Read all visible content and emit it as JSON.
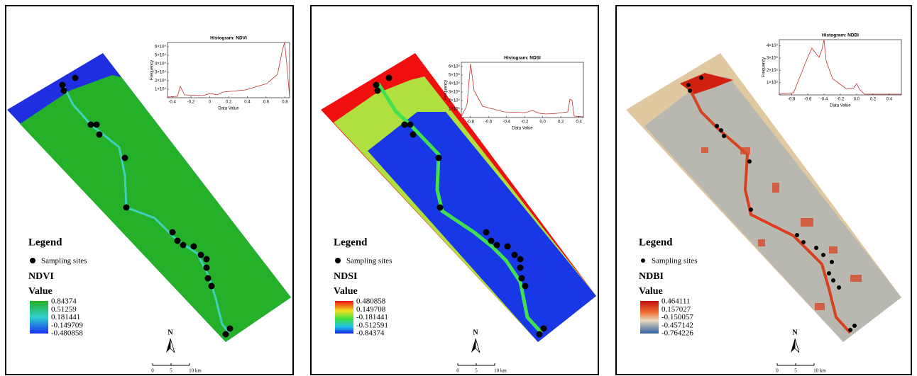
{
  "panels": [
    {
      "histogram": {
        "title": "Histogram: NDVI",
        "x_label": "Data Value",
        "y_label": "Frequency",
        "xlim": [
          -0.45,
          0.85
        ],
        "xticks": [
          -0.4,
          -0.2,
          0,
          0.2,
          0.4,
          0.6,
          0.8
        ],
        "ylim": [
          0,
          650000
        ],
        "yticks": [
          {
            "value": 100000,
            "label": "1×10⁵"
          },
          {
            "value": 200000,
            "label": "2×10⁵"
          },
          {
            "value": 300000,
            "label": "3×10⁵"
          },
          {
            "value": 400000,
            "label": "4×10⁵"
          },
          {
            "value": 500000,
            "label": "5×10⁵"
          },
          {
            "value": 600000,
            "label": "6×10⁵"
          }
        ]
      },
      "legend": {
        "title": "Legend",
        "site_label": "Sampling sites",
        "index": "NDVI",
        "value_title": "Value",
        "colorbar": [
          "0.84374",
          "0.51259",
          "0.181441",
          "-0.149709",
          "-0.480858"
        ]
      },
      "north": "N",
      "scale": [
        "0",
        "5",
        "10 km"
      ]
    },
    {
      "histogram": {
        "title": "Histogram: NDSI",
        "x_label": "Data Value",
        "y_label": "Frequency",
        "xlim": [
          -0.9,
          0.45
        ],
        "xticks": [
          -0.8,
          -0.6,
          -0.4,
          -0.2,
          {
            "value": 0,
            "label": "0.0"
          },
          0.2,
          0.4
        ],
        "ylim": [
          0,
          650000
        ],
        "yticks": [
          {
            "value": 100000,
            "label": "1×10⁵"
          },
          {
            "value": 200000,
            "label": "2×10⁵"
          },
          {
            "value": 300000,
            "label": "3×10⁵"
          },
          {
            "value": 400000,
            "label": "4×10⁵"
          },
          {
            "value": 500000,
            "label": "5×10⁵"
          },
          {
            "value": 600000,
            "label": "6×10⁵"
          }
        ]
      },
      "legend": {
        "title": "Legend",
        "site_label": "Sampling sites",
        "index": "NDSI",
        "value_title": "Value",
        "colorbar": [
          "0.480858",
          "0.149708",
          "-0.181441",
          "-0.512591",
          "-0.84374"
        ]
      },
      "north": "N",
      "scale": [
        "0",
        "5",
        "10 km"
      ]
    },
    {
      "histogram": {
        "title": "Histogram: NDBI",
        "x_label": "Data Value",
        "y_label": "Frequency",
        "xlim": [
          -0.95,
          0.55
        ],
        "xticks": [
          -0.8,
          -0.6,
          -0.4,
          -0.2,
          {
            "value": 0,
            "label": "0.0"
          },
          0.2,
          0.4
        ],
        "ylim": [
          0,
          450000
        ],
        "yticks": [
          {
            "value": 100000,
            "label": "1×10⁵"
          },
          {
            "value": 200000,
            "label": "2×10⁵"
          },
          {
            "value": 300000,
            "label": "3×10⁵"
          },
          {
            "value": 400000,
            "label": "4×10⁵"
          }
        ]
      },
      "legend": {
        "title": "Legend",
        "site_label": "Sampling sites",
        "index": "NDBI",
        "value_title": "Value",
        "colorbar": [
          "0.464111",
          "0.157027",
          "-0.150057",
          "-0.457142",
          "-0.764226"
        ]
      },
      "north": "N",
      "scale": [
        "0",
        "5",
        "10 km"
      ]
    }
  ]
}
